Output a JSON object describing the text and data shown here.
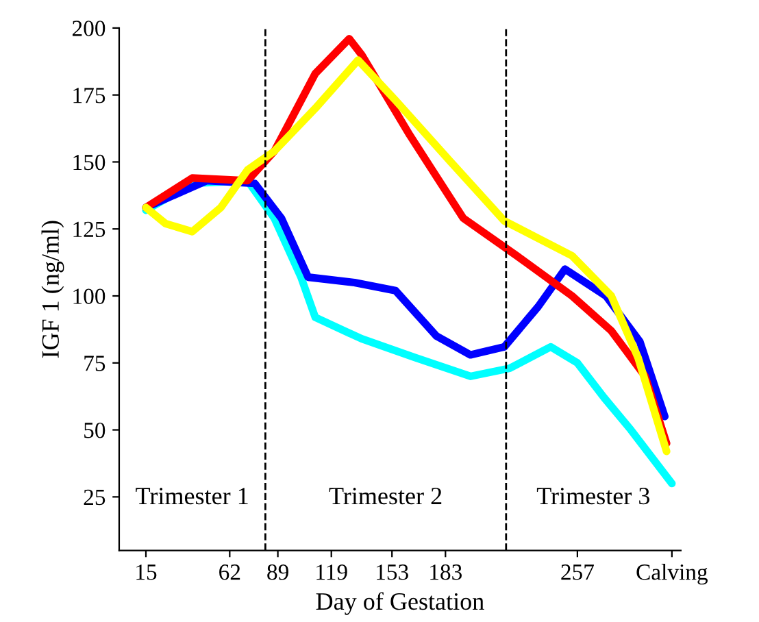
{
  "chart_data": {
    "type": "line",
    "xlabel": "Day of Gestation",
    "ylabel": "IGF 1 (ng/ml)",
    "xlim": [
      0,
      315
    ],
    "ylim": [
      5,
      200
    ],
    "xticks": [
      15,
      62,
      89,
      119,
      153,
      183,
      257,
      {
        "value": 310,
        "label": "Calving"
      }
    ],
    "yticks": [
      25,
      50,
      75,
      100,
      125,
      150,
      175,
      200
    ],
    "grid": false,
    "legend": false,
    "line_style": "solid",
    "marker": "none",
    "series": [
      {
        "color": "#00ffff",
        "x": [
          15,
          41,
          72,
          87,
          102,
          110,
          136,
          166,
          197,
          219,
          242,
          257,
          272,
          287,
          310
        ],
        "values": [
          132,
          142,
          143,
          129,
          107,
          92,
          84,
          77,
          70,
          73,
          81,
          75,
          62,
          50,
          30
        ]
      },
      {
        "color": "#0000ff",
        "x": [
          15,
          49,
          76,
          91,
          106,
          132,
          155,
          178,
          197,
          216,
          235,
          250,
          273,
          292,
          306
        ],
        "values": [
          133,
          143,
          142,
          129,
          107,
          105,
          102,
          85,
          78,
          81,
          96,
          110,
          100,
          83,
          55
        ]
      },
      {
        "color": "#ff0000",
        "x": [
          15,
          41,
          72,
          87,
          110,
          129,
          136,
          163,
          193,
          223,
          254,
          276,
          295,
          307
        ],
        "values": [
          133,
          144,
          143,
          154,
          183,
          196,
          190,
          160,
          129,
          115,
          100,
          87,
          70,
          45
        ]
      },
      {
        "color": "#ffff00",
        "x": [
          15,
          26,
          41,
          57,
          72,
          87,
          110,
          134,
          155,
          186,
          216,
          254,
          276,
          291,
          307
        ],
        "values": [
          133,
          127,
          124,
          133,
          147,
          154,
          170,
          188,
          173,
          150,
          128,
          115,
          100,
          77,
          42
        ]
      }
    ],
    "ref_lines": [
      {
        "axis": "x",
        "value": 82,
        "line_style": "dashed",
        "color": "#000000"
      },
      {
        "axis": "x",
        "value": 217,
        "line_style": "dashed",
        "color": "#000000"
      }
    ],
    "annotations": [
      "Trimester 1",
      "Trimester 2",
      "Trimester 3"
    ]
  }
}
